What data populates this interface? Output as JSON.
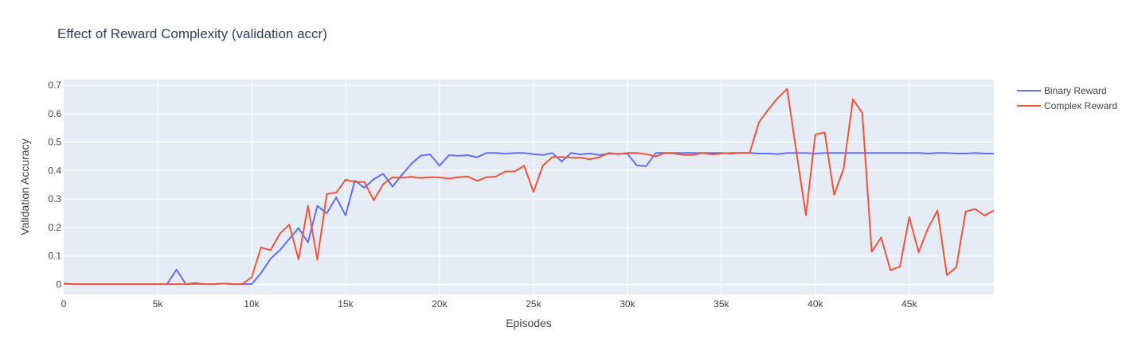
{
  "chart_data": {
    "type": "line",
    "title": "Effect of Reward Complexity (validation accr)",
    "xlabel": "Episodes",
    "ylabel": "Validation Accuracy",
    "xlim": [
      0,
      49500
    ],
    "ylim": [
      -0.035,
      0.72
    ],
    "x_ticks": [
      0,
      5000,
      10000,
      15000,
      20000,
      25000,
      30000,
      35000,
      40000,
      45000
    ],
    "x_tick_labels": [
      "0",
      "5k",
      "10k",
      "15k",
      "20k",
      "25k",
      "30k",
      "35k",
      "40k",
      "45k"
    ],
    "y_ticks": [
      0,
      0.1,
      0.2,
      0.3,
      0.4,
      0.5,
      0.6,
      0.7
    ],
    "y_tick_labels": [
      "0",
      "0.1",
      "0.2",
      "0.3",
      "0.4",
      "0.5",
      "0.6",
      "0.7"
    ],
    "grid": true,
    "legend_position": "top-right",
    "x": [
      0,
      500,
      1000,
      1500,
      2000,
      2500,
      3000,
      3500,
      4000,
      4500,
      5000,
      5500,
      6000,
      6500,
      7000,
      7500,
      8000,
      8500,
      9000,
      9500,
      10000,
      10500,
      11000,
      11500,
      12000,
      12500,
      13000,
      13500,
      14000,
      14500,
      15000,
      15500,
      16000,
      16500,
      17000,
      17500,
      18000,
      18500,
      19000,
      19500,
      20000,
      20500,
      21000,
      21500,
      22000,
      22500,
      23000,
      23500,
      24000,
      24500,
      25000,
      25500,
      26000,
      26500,
      27000,
      27500,
      28000,
      28500,
      29000,
      29500,
      30000,
      30500,
      31000,
      31500,
      32000,
      32500,
      33000,
      33500,
      34000,
      34500,
      35000,
      35500,
      36000,
      36500,
      37000,
      37500,
      38000,
      38500,
      39000,
      39500,
      40000,
      40500,
      41000,
      41500,
      42000,
      42500,
      43000,
      43500,
      44000,
      44500,
      45000,
      45500,
      46000,
      46500,
      47000,
      47500,
      48000,
      48500,
      49000,
      49500
    ],
    "series": [
      {
        "name": "Binary Reward",
        "color": "#636efa",
        "values": [
          0.003,
          0.001,
          0.001,
          0.001,
          0.001,
          0.001,
          0.001,
          0.001,
          0.001,
          0.001,
          0.001,
          0.001,
          0.052,
          0.001,
          0.002,
          0.001,
          0.001,
          0.003,
          0.001,
          0.001,
          0.001,
          0.04,
          0.09,
          0.12,
          0.16,
          0.198,
          0.148,
          0.276,
          0.25,
          0.306,
          0.243,
          0.365,
          0.34,
          0.37,
          0.389,
          0.344,
          0.385,
          0.424,
          0.452,
          0.457,
          0.417,
          0.454,
          0.452,
          0.454,
          0.447,
          0.462,
          0.462,
          0.459,
          0.462,
          0.462,
          0.458,
          0.455,
          0.462,
          0.432,
          0.462,
          0.457,
          0.46,
          0.455,
          0.459,
          0.459,
          0.459,
          0.418,
          0.416,
          0.462,
          0.462,
          0.462,
          0.462,
          0.462,
          0.462,
          0.462,
          0.462,
          0.459,
          0.462,
          0.462,
          0.46,
          0.46,
          0.458,
          0.462,
          0.462,
          0.462,
          0.46,
          0.462,
          0.462,
          0.462,
          0.462,
          0.462,
          0.462,
          0.462,
          0.462,
          0.462,
          0.462,
          0.462,
          0.46,
          0.462,
          0.462,
          0.46,
          0.46,
          0.462,
          0.46,
          0.46
        ]
      },
      {
        "name": "Complex Reward",
        "color": "#ef553b",
        "values": [
          0.002,
          0.001,
          0.001,
          0.001,
          0.001,
          0.001,
          0.001,
          0.001,
          0.001,
          0.001,
          0.001,
          0.001,
          0.001,
          0.001,
          0.005,
          0.001,
          0.001,
          0.003,
          0.001,
          0.001,
          0.025,
          0.13,
          0.12,
          0.178,
          0.21,
          0.088,
          0.276,
          0.087,
          0.318,
          0.322,
          0.368,
          0.36,
          0.36,
          0.296,
          0.352,
          0.376,
          0.375,
          0.378,
          0.374,
          0.377,
          0.376,
          0.372,
          0.377,
          0.379,
          0.364,
          0.377,
          0.379,
          0.397,
          0.397,
          0.417,
          0.325,
          0.418,
          0.447,
          0.448,
          0.446,
          0.445,
          0.44,
          0.447,
          0.462,
          0.458,
          0.462,
          0.462,
          0.458,
          0.45,
          0.462,
          0.46,
          0.455,
          0.455,
          0.462,
          0.457,
          0.46,
          0.462,
          0.462,
          0.462,
          0.57,
          0.615,
          0.655,
          0.687,
          0.462,
          0.243,
          0.527,
          0.534,
          0.315,
          0.405,
          0.651,
          0.602,
          0.115,
          0.165,
          0.05,
          0.063,
          0.236,
          0.113,
          0.198,
          0.26,
          0.033,
          0.06,
          0.256,
          0.265,
          0.242,
          0.26
        ]
      }
    ]
  }
}
